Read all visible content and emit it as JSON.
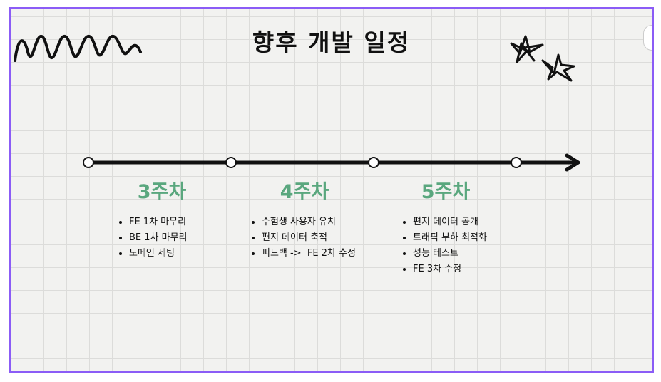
{
  "title": "향후 개발 일정",
  "timeline": {
    "weeks": [
      {
        "label": "3주차",
        "items": [
          "FE 1차 마무리",
          "BE 1차 마무리",
          "도메인 세팅"
        ]
      },
      {
        "label": "4주차",
        "items": [
          "수험생 사용자 유치",
          "편지 데이터 축적",
          "피드백 ->  FE 2차 수정"
        ]
      },
      {
        "label": "5주차",
        "items": [
          "편지 데이터 공개",
          "트래픽 부하 최적화",
          "성능 테스트",
          "FE 3차 수정"
        ]
      }
    ]
  },
  "colors": {
    "accent_green": "#5aa77e",
    "frame_purple": "#8b5cf6",
    "line": "#111111"
  },
  "icons": [
    "zigzag-doodle-icon",
    "star-doodle-icon",
    "star-doodle-icon",
    "arrow-right-icon"
  ]
}
